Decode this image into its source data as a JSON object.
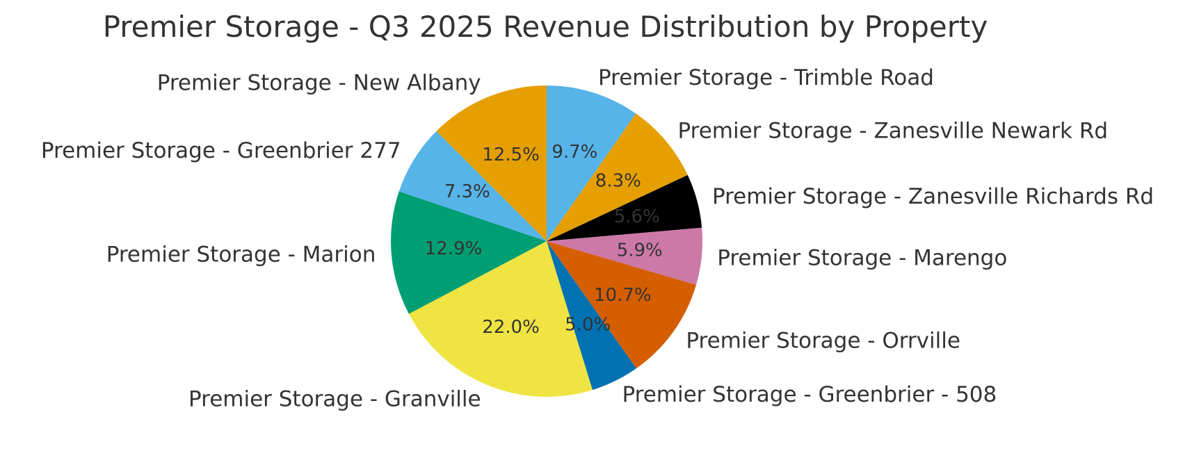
{
  "chart_data": {
    "type": "pie",
    "title": "Premier Storage - Q3 2025 Revenue Distribution by Property",
    "start_angle_deg": 90,
    "direction": "clockwise",
    "slices": [
      {
        "label": "Premier Storage - Trimble Road",
        "value": 9.7,
        "pct_label": "9.7%",
        "color": "#56B4E9"
      },
      {
        "label": "Premier Storage - Zanesville Newark Rd",
        "value": 8.3,
        "pct_label": "8.3%",
        "color": "#E69F00"
      },
      {
        "label": "Premier Storage - Zanesville Richards Rd",
        "value": 5.6,
        "pct_label": "5.6%",
        "color": "#000000"
      },
      {
        "label": "Premier Storage - Marengo",
        "value": 5.9,
        "pct_label": "5.9%",
        "color": "#CC79A7"
      },
      {
        "label": "Premier Storage - Orrville",
        "value": 10.7,
        "pct_label": "10.7%",
        "color": "#D55E00"
      },
      {
        "label": "Premier Storage - Greenbrier - 508",
        "value": 5.0,
        "pct_label": "5.0%",
        "color": "#0072B2"
      },
      {
        "label": "Premier Storage - Granville",
        "value": 22.0,
        "pct_label": "22.0%",
        "color": "#F0E442"
      },
      {
        "label": "Premier Storage - Marion",
        "value": 12.9,
        "pct_label": "12.9%",
        "color": "#009E73"
      },
      {
        "label": "Premier Storage - Greenbrier 277",
        "value": 7.3,
        "pct_label": "7.3%",
        "color": "#56B4E9"
      },
      {
        "label": "Premier Storage - New Albany",
        "value": 12.5,
        "pct_label": "12.5%",
        "color": "#E69F00"
      }
    ]
  }
}
